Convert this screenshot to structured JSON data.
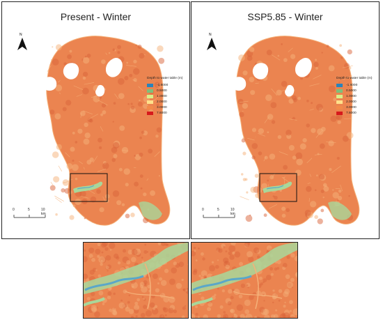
{
  "panels": [
    {
      "title": "Present - Winter",
      "north_label": "N",
      "legend": {
        "title": "Depth to water table (m)",
        "entries": [
          {
            "label": "-1.6000",
            "color": "#2b83ba"
          },
          {
            "label": "0.5000",
            "color": "#7fbf7b"
          },
          {
            "label": "1.0000",
            "color": "#d9ef8b"
          },
          {
            "label": "2.0000",
            "color": "#fee08b"
          },
          {
            "label": "3.0000",
            "color": "#f28a4a"
          },
          {
            "label": "7.6000",
            "color": "#d7191c"
          }
        ]
      },
      "scale": {
        "labels": [
          "0",
          "5",
          "10 km"
        ]
      }
    },
    {
      "title": "SSP5.85 - Winter",
      "north_label": "N",
      "legend": {
        "title": "Depth to water table (m)",
        "entries": [
          {
            "label": "-1.6000",
            "color": "#2b83ba"
          },
          {
            "label": "0.5000",
            "color": "#7fbf7b"
          },
          {
            "label": "1.0000",
            "color": "#d9ef8b"
          },
          {
            "label": "2.0000",
            "color": "#fee08b"
          },
          {
            "label": "3.0000",
            "color": "#f28a4a"
          },
          {
            "label": "7.6000",
            "color": "#d7191c"
          }
        ]
      },
      "scale": {
        "labels": [
          "0",
          "5",
          "10 km"
        ]
      }
    }
  ],
  "colors": {
    "terrain_main": "#eb8450",
    "terrain_dark": "#d9643a",
    "terrain_light": "#f5b27a",
    "wet": "#a9d79a",
    "water": "#5aa7c9",
    "lake": "#ffffff"
  }
}
